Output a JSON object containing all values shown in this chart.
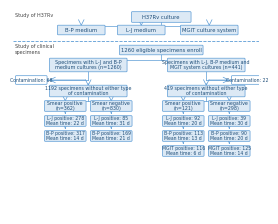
{
  "title_h37rv": "H37Rv culture",
  "study_h37rv_label": "Study of H37Rv",
  "study_clinical_label": "Study of clinical\nspecimens",
  "box_bp": "B-P medium",
  "box_lj": "L-J medium",
  "box_mgit": "MGIT culture system",
  "box_enroll": "1260 eligible specimens enroll",
  "box_lj_bp": "Specimens with L-J and B-P\nmedium cultures (n=1260)",
  "box_lj_bp_mgit": "Specimens with L-J, B-P medium and\nMGIT system cultures (n=441)",
  "contam_left": "Contamination: 68",
  "contam_right": "Contamination: 22",
  "box_1192": "1192 specimens without either type\nof contamination",
  "box_419": "419 specimens without either type\nof contamination",
  "smear_pos_left": "Smear positive\n(n=362)",
  "smear_neg_left": "Smear negative\n(n=830)",
  "smear_pos_right": "Smear positive\n(n=121)",
  "smear_neg_right": "Smear negative\n(n=298)",
  "lj_pos_left": "L-J positive: 278\nMean time: 22 d",
  "lj_neg_left": "L-J positive: 85\nMean time: 31 d",
  "lj_pos_right": "L-J positive: 92\nMean time: 20 d",
  "lj_neg_right": "L-J positive: 39\nMean time: 30 d",
  "bp_pos_left": "B-P positive: 317\nMean time: 14 d",
  "bp_neg_left": "B-P positive: 169\nMean time: 21 d",
  "bp_pos_right": "B-P positive: 113\nMean time: 13 d",
  "bp_neg_right": "B-P positive: 90\nMean time: 20 d",
  "mgit_pos_right": "MGIT positive: 116\nMean time: 6 d",
  "mgit_neg_right": "MGIT positive: 125\nMean time: 14 d",
  "box_color": "#dce9f5",
  "box_edge": "#5b9bd5",
  "text_color": "#1f4e79",
  "arrow_color": "#5b9bd5",
  "bg_color": "#ffffff",
  "dashed_line_color": "#5b9bd5",
  "font_size": 3.8,
  "label_font_size": 3.5
}
